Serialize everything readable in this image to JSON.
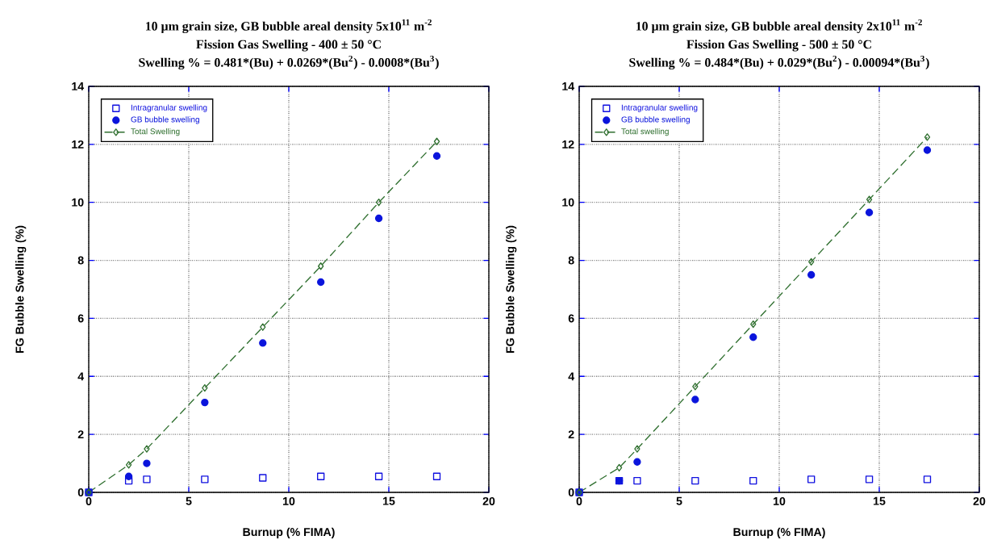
{
  "chart_data": [
    {
      "type": "scatter",
      "title": "10 µm grain size, GB bubble areal density 5x10$^{11}$ m$^{-2}$",
      "subtitle": "Fission Gas Swelling - 400 ± 50 °C",
      "annotations": [
        "Swelling % = 0.481*(Bu) + 0.0269*(Bu$^{2}$) - 0.0008*(Bu$^{3}$)"
      ],
      "xlabel": "Burnup (% FIMA)",
      "ylabel": "FG Bubble Swelling (%)",
      "x": [
        0,
        2,
        2.9,
        5.8,
        8.7,
        11.6,
        14.5,
        17.4
      ],
      "xlim": [
        0,
        20
      ],
      "ylim": [
        0,
        14
      ],
      "xticks": [
        0,
        5,
        10,
        15,
        20
      ],
      "yticks": [
        0,
        2,
        4,
        6,
        8,
        10,
        12,
        14
      ],
      "grid": true,
      "legend": "top left",
      "series": [
        {
          "name": "Intragranular swelling",
          "color": "#1010e0",
          "marker": "square",
          "values": [
            0,
            0.4,
            0.45,
            0.45,
            0.5,
            0.55,
            0.55,
            0.55
          ]
        },
        {
          "name": "GB bubble swelling",
          "color": "#0a14dc",
          "marker": "circle",
          "values": [
            0,
            0.55,
            1.0,
            3.1,
            5.15,
            7.25,
            9.45,
            11.6
          ]
        },
        {
          "name": "Total Swelling",
          "color": "#2f6f2f",
          "type": "line",
          "line_style": "dashed",
          "marker": "diamond",
          "values": [
            0,
            0.95,
            1.5,
            3.6,
            5.7,
            7.8,
            10.0,
            12.1
          ]
        }
      ]
    },
    {
      "type": "scatter",
      "title": "10 µm grain size, GB bubble areal density 2x10$^{11}$ m$^{-2}$",
      "subtitle": "Fission Gas Swelling - 500 ± 50 °C",
      "annotations": [
        "Swelling % = 0.484*(Bu) + 0.029*(Bu$^{2}$) - 0.00094*(Bu$^{3}$)"
      ],
      "xlabel": "Burnup (% FIMA)",
      "ylabel": "FG Bubble Swelling (%)",
      "x": [
        0,
        2,
        2.9,
        5.8,
        8.7,
        11.6,
        14.5,
        17.4
      ],
      "xlim": [
        0,
        20
      ],
      "ylim": [
        0,
        14
      ],
      "xticks": [
        0,
        5,
        10,
        15,
        20
      ],
      "yticks": [
        0,
        2,
        4,
        6,
        8,
        10,
        12,
        14
      ],
      "grid": true,
      "legend": "top left",
      "series": [
        {
          "name": "Intragranular swelling",
          "color": "#1010e0",
          "marker": "square",
          "values": [
            0,
            0.4,
            0.4,
            0.4,
            0.4,
            0.45,
            0.45,
            0.45
          ]
        },
        {
          "name": "GB bubble swelling",
          "color": "#0a14dc",
          "marker": "circle",
          "values": [
            0,
            0.4,
            1.05,
            3.2,
            5.35,
            7.5,
            9.65,
            11.8
          ]
        },
        {
          "name": "Total swelling",
          "color": "#2f6f2f",
          "type": "line",
          "line_style": "dashed",
          "marker": "diamond",
          "values": [
            0,
            0.85,
            1.5,
            3.65,
            5.8,
            7.95,
            10.1,
            12.25
          ]
        }
      ]
    }
  ]
}
